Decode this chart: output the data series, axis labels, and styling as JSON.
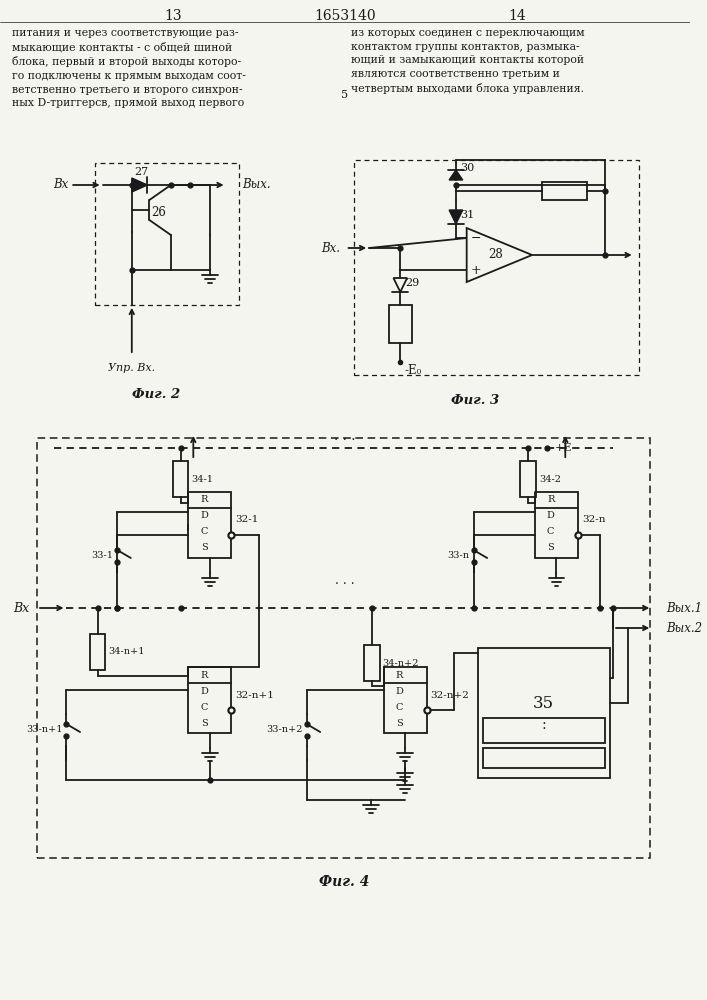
{
  "page_num_left": "13",
  "page_num_center": "1653140",
  "page_num_right": "14",
  "text_left": "питания и через соответствующие раз-\nмыкающие контакты - с общей шиной\nблока, первый и второй выходы которо-\nго подключены к прямым выходам соот-\nветственно третьего и второго синхрон-\nных D-триггерсв, прямой выход первого",
  "text_right": "из которых соединен с переключающим\nконтактом группы контактов, размыка-\nющий и замыкающий контакты которой\nявляются соответственно третьим и\nчетвертым выходами блока управления.",
  "line_color": "#000000",
  "bg_color": "#f5f5f0"
}
